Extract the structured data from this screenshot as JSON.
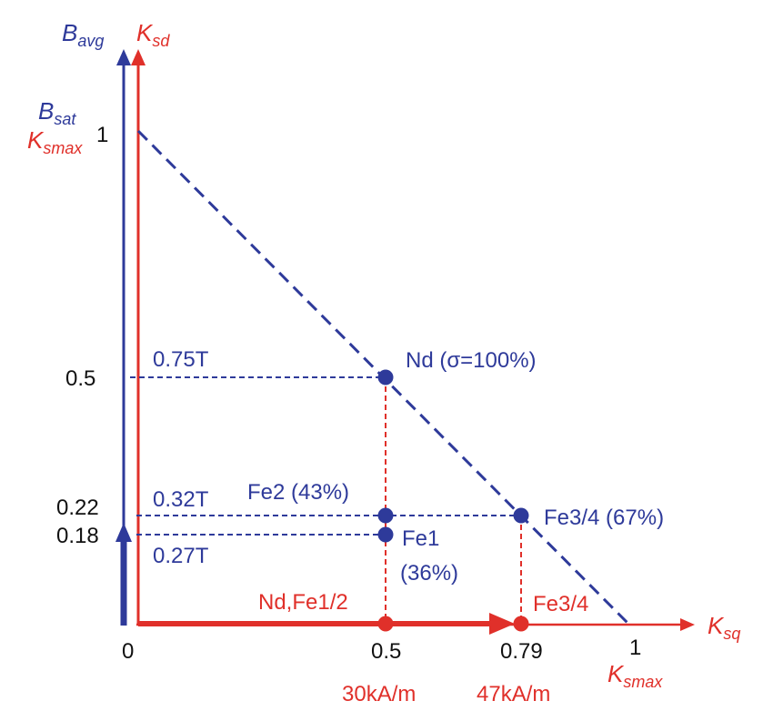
{
  "colors": {
    "blue": "#2e3a9a",
    "red": "#e0302a",
    "black": "#111111"
  },
  "axes": {
    "bavg": {
      "main": "B",
      "sub": "avg"
    },
    "ksd": {
      "main": "K",
      "sub": "sd"
    },
    "ksq": {
      "main": "K",
      "sub": "sq"
    },
    "bsat": {
      "main": "B",
      "sub": "sat"
    },
    "ksmax_y": {
      "main": "K",
      "sub": "smax"
    },
    "ksmax_x": {
      "main": "K",
      "sub": "smax"
    }
  },
  "ticks": {
    "y": {
      "one": "1",
      "half": "0.5",
      "t022": "0.22",
      "t018": "0.18"
    },
    "x": {
      "zero": "0",
      "half": "0.5",
      "t079": "0.79",
      "one": "1"
    }
  },
  "x_units": {
    "half": "30kA/m",
    "t079": "47kA/m"
  },
  "labels": {
    "b075": "0.75T",
    "b032": "0.32T",
    "b027": "0.27T",
    "nd": "Nd (σ=100%)",
    "fe2": "Fe2 (43%)",
    "fe34": "Fe3/4 (67%)",
    "fe1": "Fe1",
    "fe1_pct": "(36%)",
    "ndfe12": "Nd,Fe1/2",
    "fe34_red": "Fe3/4"
  },
  "chart_data": {
    "type": "line",
    "xlabel": "K_sq",
    "ylabel": "B_avg / K_sd",
    "xlim": [
      0,
      1
    ],
    "ylim": [
      0,
      1
    ],
    "line": {
      "from": [
        0,
        1
      ],
      "to": [
        1,
        0
      ],
      "style": "dashed"
    },
    "points": [
      {
        "name": "Nd (σ=100%)",
        "x": 0.5,
        "y": 0.5,
        "B": "0.75T",
        "H": "30kA/m"
      },
      {
        "name": "Fe2 (43%)",
        "x": 0.5,
        "y": 0.22,
        "B": "0.32T",
        "H": "30kA/m"
      },
      {
        "name": "Fe1 (36%)",
        "x": 0.5,
        "y": 0.18,
        "B": "0.27T",
        "H": "30kA/m"
      },
      {
        "name": "Fe3/4 (67%)",
        "x": 0.79,
        "y": 0.22,
        "B": "0.32T",
        "H": "47kA/m"
      }
    ]
  }
}
